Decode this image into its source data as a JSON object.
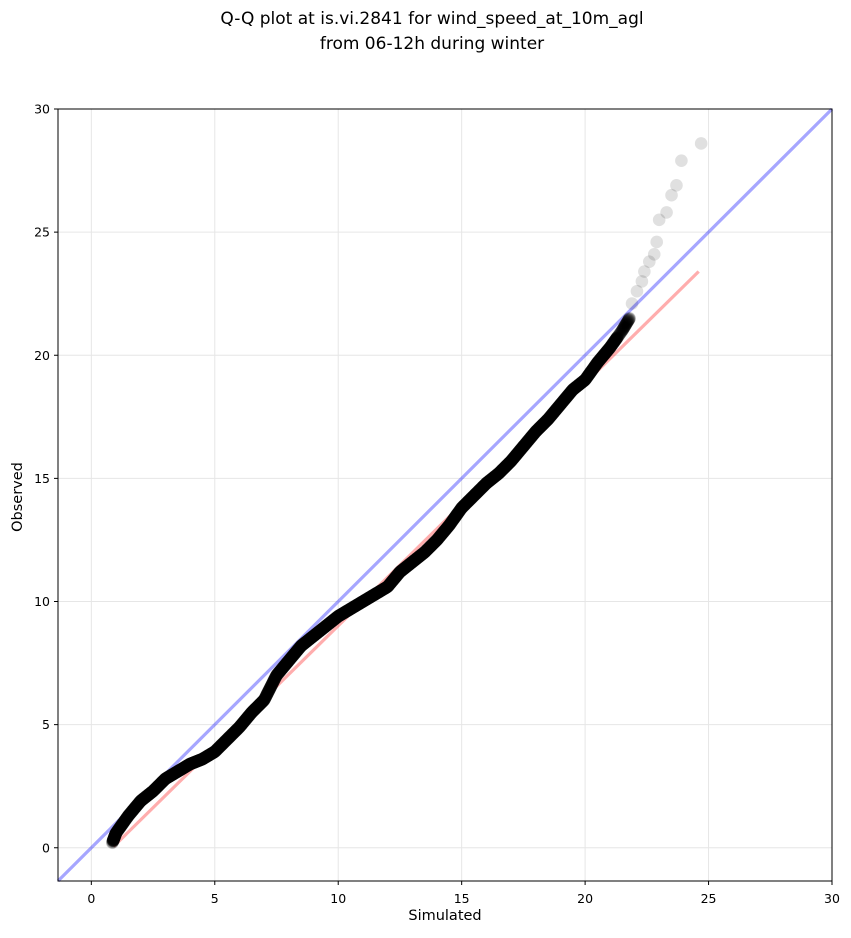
{
  "chart_data": {
    "type": "scatter",
    "title_lines": [
      "Q-Q plot at is.vi.2841 for wind_speed_at_10m_agl",
      "from 06-12h during winter"
    ],
    "xlabel": "Simulated",
    "ylabel": "Observed",
    "xlim": [
      -1.35,
      30
    ],
    "ylim": [
      -1.35,
      30
    ],
    "xticks": [
      0,
      5,
      10,
      15,
      20,
      25,
      30
    ],
    "yticks": [
      0,
      5,
      10,
      15,
      20,
      25,
      30
    ],
    "xtick_labels": [
      "0",
      "5",
      "10",
      "15",
      "20",
      "25",
      "30"
    ],
    "ytick_labels": [
      "0",
      "5",
      "10",
      "15",
      "20",
      "25",
      "30"
    ],
    "grid": true,
    "colors": {
      "points": "#000000",
      "identity_line": "#0000ff",
      "fit_line": "#ff0000",
      "grid": "#e6e6e6"
    },
    "identity_line": {
      "x": [
        -1.35,
        30
      ],
      "y": [
        -1.35,
        30
      ]
    },
    "fit_line": {
      "x": [
        0.9,
        24.6
      ],
      "y": [
        0.05,
        23.4
      ]
    },
    "quantile_curve": {
      "x": [
        0.85,
        1.0,
        1.5,
        2.0,
        2.5,
        3.0,
        3.5,
        4.0,
        4.5,
        5.0,
        5.5,
        6.0,
        6.5,
        7.0,
        7.5,
        8.0,
        8.5,
        9.0,
        9.5,
        10.0,
        10.5,
        11.0,
        11.5,
        12.0,
        12.5,
        13.0,
        13.5,
        14.0,
        14.5,
        15.0,
        15.5,
        16.0,
        16.5,
        17.0,
        17.5,
        18.0,
        18.5,
        19.0,
        19.5,
        20.0,
        20.5,
        21.0,
        21.5,
        21.8
      ],
      "y": [
        0.2,
        0.6,
        1.3,
        1.9,
        2.3,
        2.8,
        3.1,
        3.4,
        3.6,
        3.9,
        4.4,
        4.9,
        5.5,
        6.0,
        7.0,
        7.6,
        8.2,
        8.6,
        9.0,
        9.4,
        9.7,
        10.0,
        10.3,
        10.6,
        11.2,
        11.6,
        12.0,
        12.5,
        13.1,
        13.8,
        14.3,
        14.8,
        15.2,
        15.7,
        16.3,
        16.9,
        17.4,
        18.0,
        18.6,
        19.0,
        19.7,
        20.3,
        21.0,
        21.5
      ],
      "point_count": 1200
    },
    "upper_tail_points": {
      "x": [
        21.9,
        22.1,
        22.3,
        22.4,
        22.6,
        22.8,
        22.9,
        23.0,
        23.3,
        23.5,
        23.7,
        23.9,
        24.7
      ],
      "y": [
        22.1,
        22.6,
        23.0,
        23.4,
        23.8,
        24.1,
        24.6,
        25.5,
        25.8,
        26.5,
        26.9,
        27.9,
        28.6
      ]
    }
  }
}
